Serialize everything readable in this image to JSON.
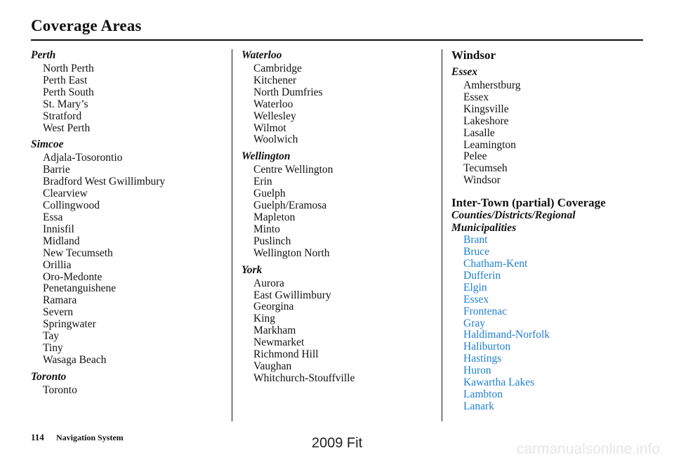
{
  "page": {
    "title": "Coverage Areas",
    "page_number": "114",
    "section_label": "Navigation System",
    "model_label": "2009  Fit",
    "watermark": "carmanualsonline.info"
  },
  "column1": {
    "groups": [
      {
        "heading": "Perth",
        "items": [
          "North Perth",
          "Perth East",
          "Perth South",
          "St. Mary’s",
          "Stratford",
          "West Perth"
        ]
      },
      {
        "heading": "Simcoe",
        "items": [
          "Adjala-Tosorontio",
          "Barrie",
          "Bradford West Gwillimbury",
          "Clearview",
          "Collingwood",
          "Essa",
          "Innisfil",
          "Midland",
          "New Tecumseth",
          "Orillia",
          "Oro-Medonte",
          "Penetanguishene",
          "Ramara",
          "Severn",
          "Springwater",
          "Tay",
          "Tiny",
          "Wasaga Beach"
        ]
      },
      {
        "heading": "Toronto",
        "items": [
          "Toronto"
        ]
      }
    ]
  },
  "column2": {
    "groups": [
      {
        "heading": "Waterloo",
        "items": [
          "Cambridge",
          "Kitchener",
          "North Dumfries",
          "Waterloo",
          "Wellesley",
          "Wilmot",
          "Woolwich"
        ]
      },
      {
        "heading": "Wellington",
        "items": [
          "Centre Wellington",
          "Erin",
          "Guelph",
          "Guelph/Eramosa",
          "Mapleton",
          "Minto",
          "Puslinch",
          "Wellington North"
        ]
      },
      {
        "heading": "York",
        "items": [
          "Aurora",
          "East Gwillimbury",
          "Georgina",
          "King",
          "Markham",
          "Newmarket",
          "Richmond Hill",
          "Vaughan",
          "Whitchurch-Stouffville"
        ]
      }
    ]
  },
  "column3": {
    "section1": {
      "heading": "Windsor",
      "group": {
        "heading": "Essex",
        "items": [
          "Amherstburg",
          "Essex",
          "Kingsville",
          "Lakeshore",
          "Lasalle",
          "Leamington",
          "Pelee",
          "Tecumseh",
          "Windsor"
        ]
      }
    },
    "section2": {
      "heading": "Inter-Town (partial) Coverage",
      "subheading": "Counties/Districts/Regional Municipalities",
      "links": [
        "Brant",
        "Bruce",
        "Chatham-Kent",
        "Dufferin",
        "Elgin",
        "Essex",
        "Frontenac",
        "Gray",
        "Haldimand-Norfolk",
        "Haliburton",
        "Hastings",
        "Huron",
        "Kawartha Lakes",
        "Lambton",
        "Lanark"
      ]
    }
  }
}
